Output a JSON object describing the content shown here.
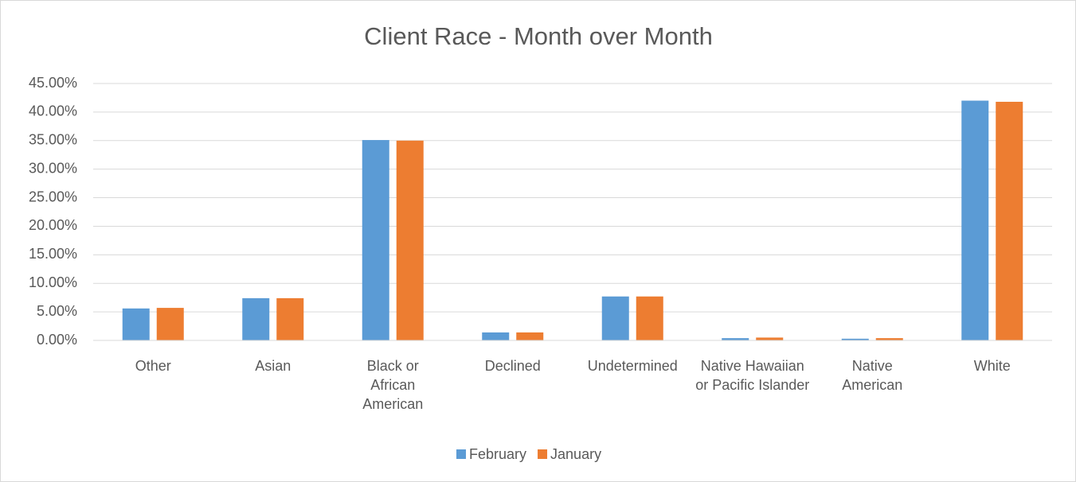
{
  "chart_data": {
    "type": "bar",
    "title": "Client Race - Month over Month",
    "categories": [
      "Other",
      "Asian",
      "Black or African American",
      "Declined",
      "Undetermined",
      "Native Hawaiian or Pacific Islander",
      "Native American",
      "White"
    ],
    "series": [
      {
        "name": "February",
        "color": "#5b9bd5",
        "values": [
          5.6,
          7.4,
          35.1,
          1.4,
          7.7,
          0.4,
          0.3,
          42.0
        ]
      },
      {
        "name": "January",
        "color": "#ed7d31",
        "values": [
          5.7,
          7.4,
          35.0,
          1.4,
          7.7,
          0.5,
          0.4,
          41.8
        ]
      }
    ],
    "ylim": [
      0,
      45
    ],
    "yticks": [
      {
        "value": 0,
        "label": "0.00%"
      },
      {
        "value": 5,
        "label": "5.00%"
      },
      {
        "value": 10,
        "label": "10.00%"
      },
      {
        "value": 15,
        "label": "15.00%"
      },
      {
        "value": 20,
        "label": "20.00%"
      },
      {
        "value": 25,
        "label": "25.00%"
      },
      {
        "value": 30,
        "label": "30.00%"
      },
      {
        "value": 35,
        "label": "35.00%"
      },
      {
        "value": 40,
        "label": "40.00%"
      },
      {
        "value": 45,
        "label": "45.00%"
      }
    ],
    "grid": true,
    "legend": "bottom"
  }
}
